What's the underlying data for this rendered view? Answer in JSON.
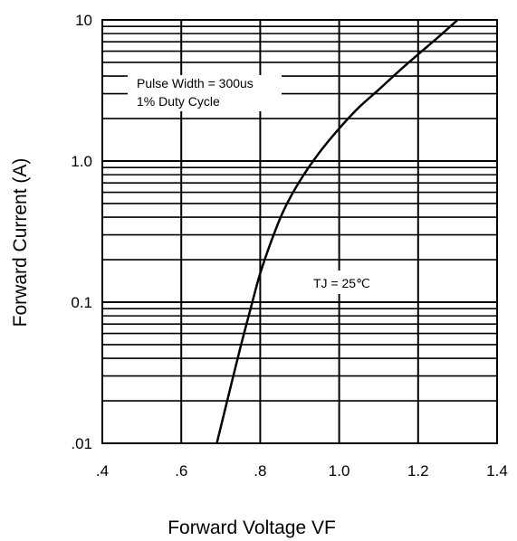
{
  "chart_data": {
    "type": "line",
    "title": "",
    "xlabel": "Forward Voltage VF",
    "ylabel": "Forward Current (A)",
    "xlim": [
      0.4,
      1.4
    ],
    "ylim": [
      0.01,
      10
    ],
    "yscale": "log",
    "grid": true,
    "x_ticks": [
      0.4,
      0.6,
      0.8,
      1.0,
      1.2,
      1.4
    ],
    "x_tick_labels": [
      ".4",
      ".6",
      ".8",
      "1.0",
      "1.2",
      "1.4"
    ],
    "y_ticks": [
      0.01,
      0.1,
      1.0,
      10
    ],
    "y_tick_labels": [
      ".01",
      "0.1",
      "1.0",
      "10"
    ],
    "annotations": [
      {
        "lines": [
          "Pulse Width = 300us",
          "1% Duty Cycle"
        ]
      },
      {
        "lines": [
          "TJ = 25℃"
        ]
      }
    ],
    "series": [
      {
        "x": [
          0.69,
          0.72,
          0.75,
          0.78,
          0.8,
          0.83,
          0.86,
          0.9,
          0.95,
          1.0,
          1.05,
          1.1,
          1.15,
          1.2,
          1.25,
          1.3
        ],
        "y": [
          0.01,
          0.022,
          0.048,
          0.1,
          0.16,
          0.28,
          0.45,
          0.72,
          1.15,
          1.7,
          2.4,
          3.2,
          4.3,
          5.7,
          7.5,
          10.0
        ]
      }
    ]
  }
}
